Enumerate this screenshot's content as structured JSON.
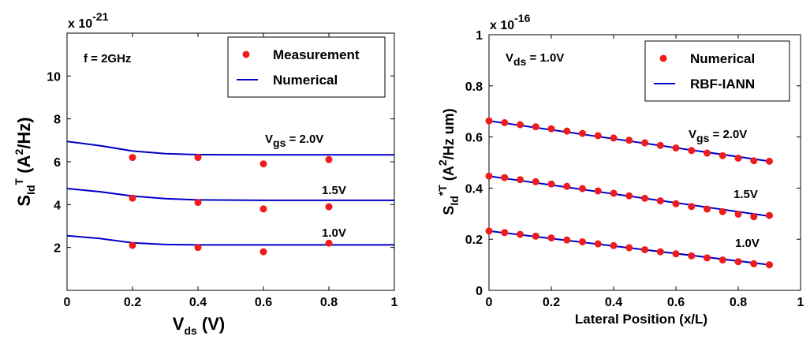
{
  "chart_data": [
    {
      "type": "scatter",
      "ylabel_main": "S",
      "ylabel_sup": "T",
      "ylabel_sub": "Id",
      "ylabel_unit_a": "(A",
      "ylabel_unit_sup": "2",
      "ylabel_unit_b": "/Hz)",
      "xlabel_main": "V",
      "xlabel_sub": "ds",
      "xlabel_unit": "(V)",
      "exponent_base": "x 10",
      "exponent_power": "-21",
      "xlim": [
        0,
        1
      ],
      "ylim": [
        0,
        12
      ],
      "xticks": [
        0,
        0.2,
        0.4,
        0.6,
        0.8,
        1
      ],
      "xtick_labels": [
        "0",
        "0.2",
        "0.4",
        "0.6",
        "0.8",
        "1"
      ],
      "yticks": [
        2,
        4,
        6,
        8,
        10
      ],
      "ytick_labels": [
        "2",
        "4",
        "6",
        "8",
        "10"
      ],
      "annotation": "f = 2GHz",
      "legend": {
        "position": "top-right",
        "entries": [
          "Measurement",
          "Numerical"
        ]
      },
      "line_color": "#0000c8",
      "marker_color": "#ee1c1c",
      "curve_labels": [
        {
          "main": "V",
          "sub": "gs",
          "rest": " = 2.0V"
        },
        {
          "main": "",
          "sub": "",
          "rest": "1.5V"
        },
        {
          "main": "",
          "sub": "",
          "rest": "1.0V"
        }
      ],
      "series": [
        {
          "name": "Measurement",
          "kind": "markers",
          "groups": [
            {
              "x": [
                0.2,
                0.4,
                0.6,
                0.8
              ],
              "y": [
                6.2,
                6.2,
                5.9,
                6.1
              ]
            },
            {
              "x": [
                0.2,
                0.4,
                0.6,
                0.8
              ],
              "y": [
                4.3,
                4.1,
                3.8,
                3.9
              ]
            },
            {
              "x": [
                0.2,
                0.4,
                0.6,
                0.8
              ],
              "y": [
                2.1,
                2.0,
                1.8,
                2.2
              ]
            }
          ]
        },
        {
          "name": "Numerical",
          "kind": "line",
          "groups": [
            {
              "x": [
                0,
                0.1,
                0.2,
                0.3,
                0.4,
                0.6,
                0.8,
                1
              ],
              "y": [
                6.95,
                6.75,
                6.5,
                6.38,
                6.33,
                6.32,
                6.32,
                6.32
              ]
            },
            {
              "x": [
                0,
                0.1,
                0.2,
                0.3,
                0.4,
                0.6,
                0.8,
                1
              ],
              "y": [
                4.75,
                4.6,
                4.4,
                4.28,
                4.22,
                4.2,
                4.2,
                4.2
              ]
            },
            {
              "x": [
                0,
                0.1,
                0.2,
                0.3,
                0.4,
                0.6,
                0.8,
                1
              ],
              "y": [
                2.55,
                2.42,
                2.22,
                2.14,
                2.12,
                2.12,
                2.12,
                2.12
              ]
            }
          ]
        }
      ]
    },
    {
      "type": "scatter",
      "ylabel_main": "S",
      "ylabel_sup": "*T",
      "ylabel_sub": "Id",
      "ylabel_unit_a": "(A",
      "ylabel_unit_sup": "2",
      "ylabel_unit_b": "/Hz um)",
      "xlabel_main": "Lateral Position (x/L)",
      "xlabel_sub": "",
      "xlabel_unit": "",
      "exponent_base": "x 10",
      "exponent_power": "-16",
      "xlim": [
        0,
        1
      ],
      "ylim": [
        0,
        1
      ],
      "xticks": [
        0,
        0.2,
        0.4,
        0.6,
        0.8,
        1
      ],
      "xtick_labels": [
        "0",
        "0.2",
        "0.4",
        "0.6",
        "0.8",
        "1"
      ],
      "yticks": [
        0,
        0.2,
        0.4,
        0.6,
        0.8,
        1
      ],
      "ytick_labels": [
        "0",
        "0.2",
        "0.4",
        "0.6",
        "0.8",
        "1"
      ],
      "annotation_main": "V",
      "annotation_sub": "ds",
      "annotation_rest": " = 1.0V",
      "legend": {
        "position": "top-right",
        "entries": [
          "Numerical",
          "RBF-IANN"
        ]
      },
      "line_color": "#0000c8",
      "marker_color": "#ee1c1c",
      "curve_labels": [
        {
          "main": "V",
          "sub": "gs",
          "rest": " = 2.0V"
        },
        {
          "main": "",
          "sub": "",
          "rest": "1.5V"
        },
        {
          "main": "",
          "sub": "",
          "rest": "1.0V"
        }
      ],
      "series": [
        {
          "name": "Numerical",
          "kind": "markers",
          "groups": [
            {
              "x": [
                0,
                0.05,
                0.1,
                0.15,
                0.2,
                0.25,
                0.3,
                0.35,
                0.4,
                0.45,
                0.5,
                0.55,
                0.6,
                0.65,
                0.7,
                0.75,
                0.8,
                0.85,
                0.9
              ],
              "y": [
                0.663,
                0.656,
                0.648,
                0.64,
                0.632,
                0.623,
                0.614,
                0.605,
                0.596,
                0.587,
                0.577,
                0.567,
                0.557,
                0.547,
                0.537,
                0.527,
                0.517,
                0.507,
                0.505
              ]
            },
            {
              "x": [
                0,
                0.05,
                0.1,
                0.15,
                0.2,
                0.25,
                0.3,
                0.35,
                0.4,
                0.45,
                0.5,
                0.55,
                0.6,
                0.65,
                0.7,
                0.75,
                0.8,
                0.85,
                0.9
              ],
              "y": [
                0.447,
                0.441,
                0.433,
                0.425,
                0.416,
                0.407,
                0.398,
                0.389,
                0.38,
                0.37,
                0.36,
                0.35,
                0.339,
                0.328,
                0.318,
                0.308,
                0.298,
                0.288,
                0.293
              ]
            },
            {
              "x": [
                0,
                0.05,
                0.1,
                0.15,
                0.2,
                0.25,
                0.3,
                0.35,
                0.4,
                0.45,
                0.5,
                0.55,
                0.6,
                0.65,
                0.7,
                0.75,
                0.8,
                0.85,
                0.9
              ],
              "y": [
                0.232,
                0.226,
                0.219,
                0.212,
                0.205,
                0.197,
                0.19,
                0.182,
                0.175,
                0.167,
                0.159,
                0.151,
                0.143,
                0.135,
                0.127,
                0.119,
                0.112,
                0.104,
                0.1
              ]
            }
          ]
        },
        {
          "name": "RBF-IANN",
          "kind": "line",
          "groups": [
            {
              "x": [
                0,
                0.9
              ],
              "y": [
                0.663,
                0.505
              ]
            },
            {
              "x": [
                0,
                0.9
              ],
              "y": [
                0.447,
                0.29
              ]
            },
            {
              "x": [
                0,
                0.9
              ],
              "y": [
                0.232,
                0.1
              ]
            }
          ]
        }
      ]
    }
  ]
}
